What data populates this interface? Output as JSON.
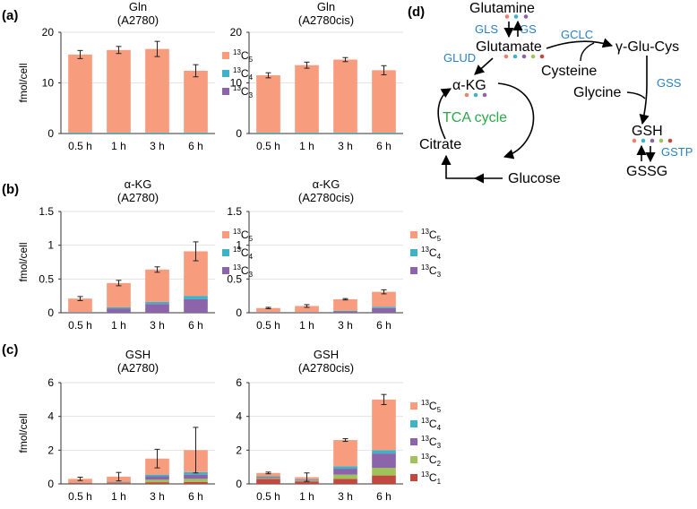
{
  "colors": {
    "C5": "#f79c7d",
    "C4": "#3fb1c9",
    "C3": "#8b64a9",
    "C2": "#9fc25a",
    "C1": "#c2473f",
    "enzyme": "#2b7fc1",
    "tca": "#2ca84a",
    "dot_red": "#e8846a",
    "dot_teal": "#3fb1c9",
    "dot_purple": "#8b64a9",
    "dot_green": "#9fc25a",
    "dot_darkred": "#c2473f"
  },
  "panels": {
    "a": "(a)",
    "b": "(b)",
    "c": "(c)",
    "d": "(d)"
  },
  "chart_data": [
    {
      "id": "a1",
      "type": "bar",
      "stacked": true,
      "title": [
        "Gln",
        "(A2780)"
      ],
      "ylabel": "fmol/cell",
      "categories": [
        "0.5 h",
        "1 h",
        "3 h",
        "6 h"
      ],
      "ylim": [
        0,
        20
      ],
      "yticks": [
        "0",
        "10",
        "20"
      ],
      "series": [
        {
          "name": "C4",
          "values": [
            0.2,
            0.2,
            0.2,
            0.2
          ]
        },
        {
          "name": "C5",
          "values": [
            15.4,
            16.3,
            16.5,
            12.2
          ]
        }
      ],
      "errors": [
        0.8,
        0.7,
        1.5,
        1.2
      ],
      "legend": [
        "C5",
        "C4",
        "C3"
      ]
    },
    {
      "id": "a2",
      "type": "bar",
      "stacked": true,
      "title": [
        "Gln",
        "(A2780cis)"
      ],
      "ylabel": "",
      "categories": [
        "0.5 h",
        "1 h",
        "3 h",
        "6 h"
      ],
      "ylim": [
        0,
        20
      ],
      "yticks": [
        "0",
        "10",
        "20"
      ],
      "series": [
        {
          "name": "C4",
          "values": [
            0.2,
            0.2,
            0.2,
            0.2
          ]
        },
        {
          "name": "C5",
          "values": [
            11.3,
            13.3,
            14.4,
            12.3
          ]
        }
      ],
      "errors": [
        0.5,
        0.6,
        0.4,
        0.9
      ],
      "legend": []
    },
    {
      "id": "b1",
      "type": "bar",
      "stacked": true,
      "title": [
        "α-KG",
        "(A2780)"
      ],
      "ylabel": "fmol/cell",
      "categories": [
        "0.5 h",
        "1 h",
        "3 h",
        "6 h"
      ],
      "ylim": [
        0,
        1.5
      ],
      "yticks": [
        "0",
        "0.5",
        "1",
        "1.5"
      ],
      "series": [
        {
          "name": "C3",
          "values": [
            0.005,
            0.06,
            0.13,
            0.2
          ]
        },
        {
          "name": "C4",
          "values": [
            0.005,
            0.02,
            0.03,
            0.05
          ]
        },
        {
          "name": "C5",
          "values": [
            0.2,
            0.36,
            0.48,
            0.66
          ]
        }
      ],
      "errors": [
        0.03,
        0.04,
        0.04,
        0.14
      ],
      "legend": [
        "C5",
        "C4",
        "C3"
      ]
    },
    {
      "id": "b2",
      "type": "bar",
      "stacked": true,
      "title": [
        "α-KG",
        "(A2780cis)"
      ],
      "ylabel": "",
      "categories": [
        "0.5 h",
        "1 h",
        "3 h",
        "6 h"
      ],
      "ylim": [
        0,
        1.5
      ],
      "yticks": [
        "0",
        "0.5",
        "1",
        "1.5"
      ],
      "series": [
        {
          "name": "C3",
          "values": [
            0.005,
            0.005,
            0.02,
            0.07
          ]
        },
        {
          "name": "C4",
          "values": [
            0.005,
            0.005,
            0.01,
            0.02
          ]
        },
        {
          "name": "C5",
          "values": [
            0.06,
            0.09,
            0.17,
            0.22
          ]
        }
      ],
      "errors": [
        0.01,
        0.02,
        0.01,
        0.03
      ],
      "legend": [
        "C5",
        "C4",
        "C3"
      ]
    },
    {
      "id": "c1",
      "type": "bar",
      "stacked": true,
      "title": [
        "GSH",
        "(A2780)"
      ],
      "ylabel": "fmol/cell",
      "categories": [
        "0.5 h",
        "1 h",
        "3 h",
        "6 h"
      ],
      "ylim": [
        0,
        6
      ],
      "yticks": [
        "0",
        "2",
        "4",
        "6"
      ],
      "series": [
        {
          "name": "C1",
          "values": [
            0.05,
            0.05,
            0.1,
            0.12
          ]
        },
        {
          "name": "C2",
          "values": [
            0.02,
            0.03,
            0.15,
            0.18
          ]
        },
        {
          "name": "C3",
          "values": [
            0.02,
            0.03,
            0.2,
            0.25
          ]
        },
        {
          "name": "C4",
          "values": [
            0.01,
            0.02,
            0.1,
            0.15
          ]
        },
        {
          "name": "C5",
          "values": [
            0.2,
            0.3,
            0.95,
            1.3
          ]
        }
      ],
      "errors": [
        0.1,
        0.25,
        0.55,
        1.35
      ],
      "legend": []
    },
    {
      "id": "c2",
      "type": "bar",
      "stacked": true,
      "title": [
        "GSH",
        "(A2780cis)"
      ],
      "ylabel": "",
      "categories": [
        "0.5 h",
        "1 h",
        "3 h",
        "6 h"
      ],
      "ylim": [
        0,
        6
      ],
      "yticks": [
        "0",
        "2",
        "4",
        "6"
      ],
      "series": [
        {
          "name": "C1",
          "values": [
            0.3,
            0.15,
            0.3,
            0.5
          ]
        },
        {
          "name": "C2",
          "values": [
            0.05,
            0.05,
            0.25,
            0.45
          ]
        },
        {
          "name": "C3",
          "values": [
            0.05,
            0.05,
            0.35,
            0.85
          ]
        },
        {
          "name": "C4",
          "values": [
            0.05,
            0.03,
            0.15,
            0.2
          ]
        },
        {
          "name": "C5",
          "values": [
            0.2,
            0.12,
            1.55,
            3.0
          ]
        }
      ],
      "errors": [
        0.05,
        0.25,
        0.08,
        0.3
      ],
      "legend": [
        "C5",
        "C4",
        "C3",
        "C2",
        "C1"
      ]
    }
  ],
  "pathway": {
    "nodes": {
      "glutamine": "Glutamine",
      "glutamate": "Glutamate",
      "akg": "α-KG",
      "citrate": "Citrate",
      "glucose": "Glucose",
      "gglucys": "γ-Glu-Cys",
      "cysteine": "Cysteine",
      "glycine": "Glycine",
      "gsh": "GSH",
      "gssg": "GSSG",
      "tca": "TCA cycle"
    },
    "enzymes": {
      "gls": "GLS",
      "gs": "GS",
      "glud": "GLUD",
      "gclc": "GCLC",
      "gss": "GSS",
      "gstp": "GSTP"
    }
  }
}
